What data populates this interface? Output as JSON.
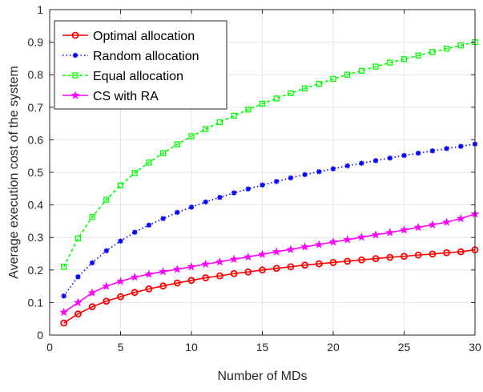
{
  "chart_data": {
    "type": "line",
    "xlabel": "Number of MDs",
    "ylabel": "Average execution cost of the system",
    "xlim": [
      0,
      30
    ],
    "ylim": [
      0,
      1
    ],
    "x_ticks": [
      0,
      5,
      10,
      15,
      20,
      25,
      30
    ],
    "y_ticks": [
      0,
      0.1,
      0.2,
      0.3,
      0.4,
      0.5,
      0.6,
      0.7,
      0.8,
      0.9,
      1
    ],
    "grid": true,
    "legend_position": "top-left",
    "x": [
      1,
      2,
      3,
      4,
      5,
      6,
      7,
      8,
      9,
      10,
      11,
      12,
      13,
      14,
      15,
      16,
      17,
      18,
      19,
      20,
      21,
      22,
      23,
      24,
      25,
      26,
      27,
      28,
      29,
      30
    ],
    "series": [
      {
        "name": "Optimal allocation",
        "color": "#ff0000",
        "marker": "circle",
        "line_style": "solid",
        "values": [
          0.037,
          0.065,
          0.087,
          0.104,
          0.118,
          0.131,
          0.142,
          0.151,
          0.16,
          0.168,
          0.176,
          0.182,
          0.189,
          0.194,
          0.2,
          0.205,
          0.21,
          0.215,
          0.219,
          0.223,
          0.227,
          0.231,
          0.235,
          0.239,
          0.242,
          0.246,
          0.249,
          0.253,
          0.256,
          0.262
        ]
      },
      {
        "name": "Random allocation",
        "color": "#0000ff",
        "marker": "asterisk",
        "line_style": "dotted",
        "values": [
          0.12,
          0.179,
          0.222,
          0.259,
          0.289,
          0.316,
          0.338,
          0.358,
          0.377,
          0.393,
          0.409,
          0.423,
          0.437,
          0.449,
          0.461,
          0.472,
          0.483,
          0.493,
          0.502,
          0.511,
          0.52,
          0.528,
          0.536,
          0.544,
          0.552,
          0.559,
          0.566,
          0.573,
          0.58,
          0.587
        ]
      },
      {
        "name": "Equal allocation",
        "color": "#00ff00",
        "marker": "square",
        "line_style": "dashed",
        "values": [
          0.21,
          0.297,
          0.363,
          0.416,
          0.46,
          0.498,
          0.53,
          0.559,
          0.586,
          0.611,
          0.633,
          0.654,
          0.674,
          0.693,
          0.711,
          0.727,
          0.743,
          0.758,
          0.772,
          0.787,
          0.8,
          0.812,
          0.825,
          0.837,
          0.848,
          0.859,
          0.87,
          0.88,
          0.89,
          0.9
        ]
      },
      {
        "name": "CS with RA",
        "color": "#ff00ff",
        "marker": "star",
        "line_style": "solid",
        "values": [
          0.07,
          0.1,
          0.13,
          0.15,
          0.165,
          0.178,
          0.187,
          0.195,
          0.202,
          0.21,
          0.218,
          0.225,
          0.233,
          0.24,
          0.248,
          0.256,
          0.263,
          0.271,
          0.278,
          0.286,
          0.293,
          0.301,
          0.308,
          0.315,
          0.323,
          0.331,
          0.339,
          0.347,
          0.358,
          0.372
        ]
      }
    ]
  }
}
